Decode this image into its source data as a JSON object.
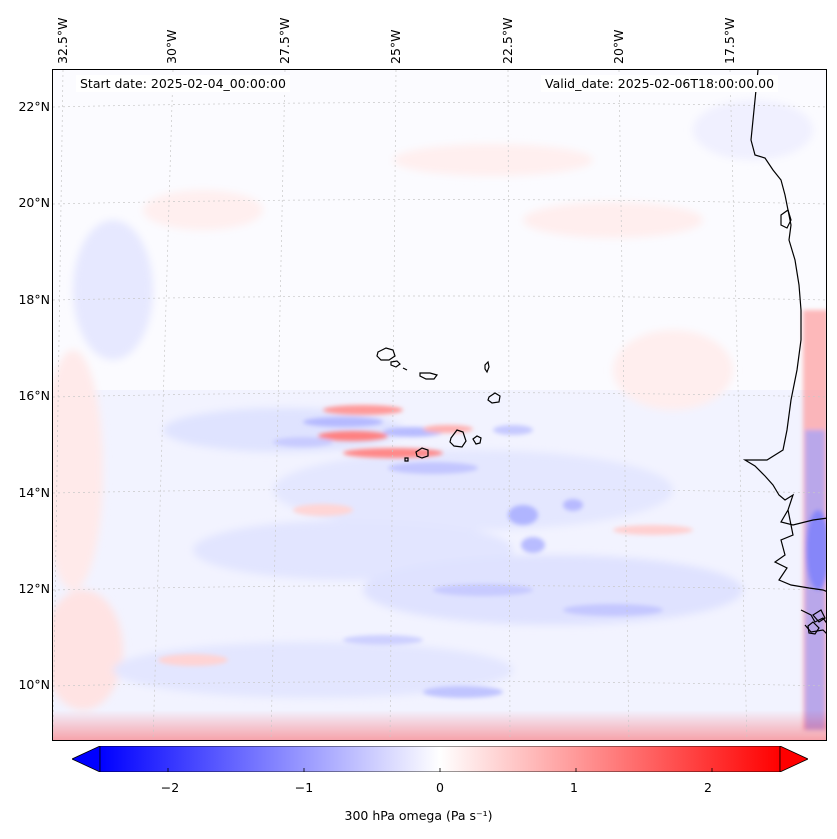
{
  "map": {
    "start_date": "Start date: 2025-02-04_00:00:00",
    "valid_date": "Valid_date: 2025-02-06T18:00:00.00",
    "lon_labels": [
      "32.5°W",
      "30°W",
      "27.5°W",
      "25°W",
      "22.5°W",
      "20°W",
      "17.5°W"
    ],
    "lat_labels": [
      "22°N",
      "20°N",
      "18°N",
      "16°N",
      "14°N",
      "12°N",
      "10°N"
    ],
    "colors": {
      "neg": "#0000ff",
      "zero": "#ffffff",
      "pos": "#ff0000",
      "coast": "#000000",
      "grid": "#c8c8c8"
    }
  },
  "colorbar": {
    "title": "300 hPa omega (Pa s⁻¹)",
    "ticks": [
      "−2",
      "−1",
      "0",
      "1",
      "2"
    ],
    "tick_values": [
      -2,
      -1,
      0,
      1,
      2
    ],
    "vmin": -2.5,
    "vmax": 2.5
  }
}
